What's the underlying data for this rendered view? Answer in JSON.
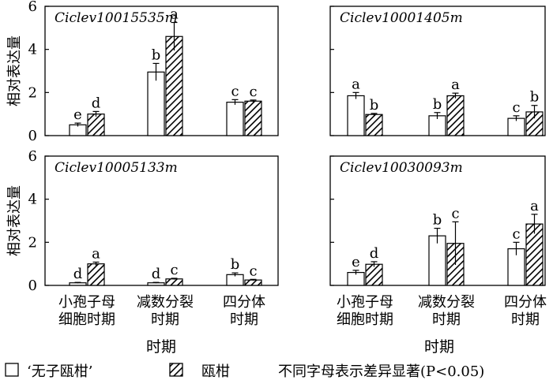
{
  "chart_data": {
    "type": "bar",
    "ylabel": "相对表达量",
    "xlabel": "时期",
    "ylim": [
      0,
      6
    ],
    "yticks": [
      0,
      2,
      4,
      6
    ],
    "categories": [
      "小孢子母细胞时期",
      "减数分裂时期",
      "四分体时期"
    ],
    "category_lines": [
      [
        "小孢子母",
        "细胞时期"
      ],
      [
        "减数分裂",
        "时期"
      ],
      [
        "四分体",
        "时期"
      ]
    ],
    "series_names": [
      "‘无子瓯柑’",
      "瓯柑"
    ],
    "legend": {
      "items": [
        {
          "label": "‘无子瓯柑’",
          "pattern": "open"
        },
        {
          "label": "瓯柑",
          "pattern": "hatched"
        }
      ],
      "note": "不同字母表示差异显著(P<0.05)"
    },
    "panels": [
      {
        "title": "Ciclev10015535m",
        "series": [
          {
            "name": "‘无子瓯柑’",
            "values": [
              0.5,
              2.95,
              1.55
            ],
            "errors": [
              0.08,
              0.4,
              0.12
            ],
            "letters": [
              "e",
              "b",
              "c"
            ]
          },
          {
            "name": "瓯柑",
            "values": [
              1.0,
              4.6,
              1.6
            ],
            "errors": [
              0.12,
              0.65,
              0.05
            ],
            "letters": [
              "d",
              "a",
              "c"
            ]
          }
        ]
      },
      {
        "title": "Ciclev10001405m",
        "series": [
          {
            "name": "‘无子瓯柑’",
            "values": [
              1.85,
              0.92,
              0.8
            ],
            "errors": [
              0.15,
              0.15,
              0.12
            ],
            "letters": [
              "a",
              "b",
              "c"
            ]
          },
          {
            "name": "瓯柑",
            "values": [
              0.98,
              1.85,
              1.1
            ],
            "errors": [
              0.05,
              0.12,
              0.3
            ],
            "letters": [
              "b",
              "a",
              "b"
            ]
          }
        ]
      },
      {
        "title": "Ciclev10005133m",
        "series": [
          {
            "name": "‘无子瓯柑’",
            "values": [
              0.12,
              0.12,
              0.5
            ],
            "errors": [
              0.02,
              0.02,
              0.08
            ],
            "letters": [
              "d",
              "d",
              "b"
            ]
          },
          {
            "name": "瓯柑",
            "values": [
              1.0,
              0.3,
              0.25
            ],
            "errors": [
              0.08,
              0.03,
              0.03
            ],
            "letters": [
              "a",
              "c",
              "c"
            ]
          }
        ]
      },
      {
        "title": "Ciclev10030093m",
        "series": [
          {
            "name": "‘无子瓯柑’",
            "values": [
              0.6,
              2.3,
              1.7
            ],
            "errors": [
              0.1,
              0.35,
              0.3
            ],
            "letters": [
              "e",
              "b",
              "c"
            ]
          },
          {
            "name": "瓯柑",
            "values": [
              0.98,
              1.95,
              2.85
            ],
            "errors": [
              0.12,
              1.0,
              0.45
            ],
            "letters": [
              "d",
              "c",
              "a"
            ]
          }
        ]
      }
    ]
  }
}
